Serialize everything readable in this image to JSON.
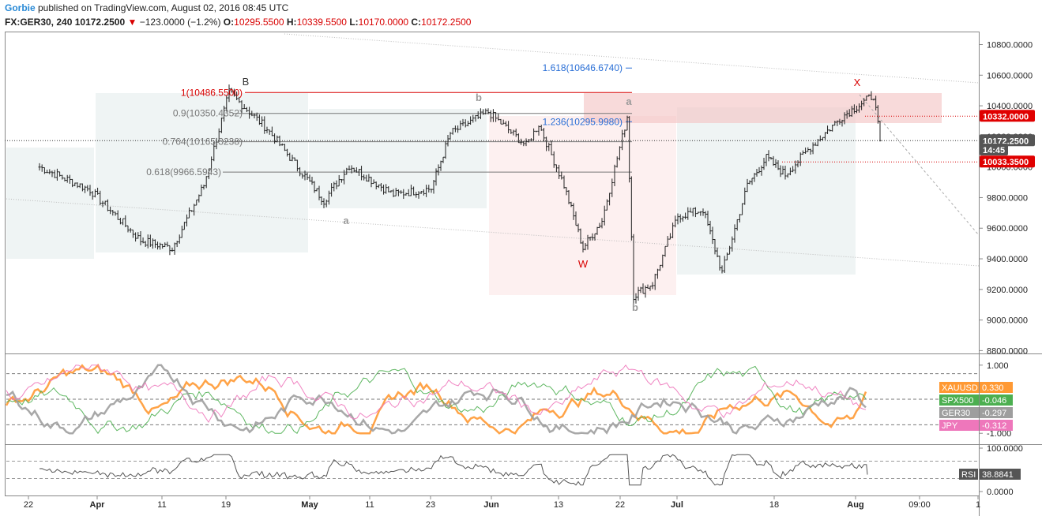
{
  "header": {
    "author": "Gorbie",
    "published_text": " published on TradingView.com, August 02, 2016 08:45 UTC",
    "symbol": "FX:GER30, 240",
    "last": "10172.2500",
    "change": "−123.0000 (−1.2%)",
    "o_label": "O:",
    "o_value": "10295.5500",
    "h_label": "H:",
    "h_value": "10339.5500",
    "l_label": "L:",
    "l_value": "10170.0000",
    "c_label": "C:",
    "c_value": "10172.2500"
  },
  "colors": {
    "up": "#222222",
    "red": "#d80000",
    "blue": "#2a6fd6",
    "xauusd": "#ff9933",
    "spx500": "#4caf50",
    "ger30": "#9e9e9e",
    "jpy": "#ee77bb",
    "rsi": "#555555"
  },
  "chart_data": [
    {
      "type": "candlestick",
      "name": "FX:GER30, 240",
      "ylim": [
        8800,
        10900
      ],
      "y_ticks": [
        "10800.0000",
        "10600.0000",
        "10400.0000",
        "10200.0000",
        "10000.0000",
        "9800.0000",
        "9600.0000",
        "9400.0000",
        "9200.0000",
        "9000.0000",
        "8800.0000"
      ],
      "x_ticks": [
        "22",
        "Apr",
        "11",
        "19",
        "May",
        "11",
        "23",
        "Jun",
        "13",
        "22",
        "Jul",
        "18",
        "Aug",
        "09:00",
        "1"
      ],
      "key_points": [
        {
          "date": "2016-03-22",
          "value": 10000
        },
        {
          "date": "2016-03-30",
          "value": 9850
        },
        {
          "date": "2016-04-07",
          "value": 9520
        },
        {
          "date": "2016-04-12",
          "value": 9470
        },
        {
          "date": "2016-04-17",
          "value": 9880
        },
        {
          "date": "2016-04-21",
          "value": 10486.55
        },
        {
          "date": "2016-04-27",
          "value": 10250
        },
        {
          "date": "2016-05-03",
          "value": 9940
        },
        {
          "date": "2016-05-06",
          "value": 9780
        },
        {
          "date": "2016-05-10",
          "value": 10010
        },
        {
          "date": "2016-05-17",
          "value": 9820
        },
        {
          "date": "2016-05-23",
          "value": 9860
        },
        {
          "date": "2016-05-26",
          "value": 10220
        },
        {
          "date": "2016-06-01",
          "value": 10360
        },
        {
          "date": "2016-06-07",
          "value": 10140
        },
        {
          "date": "2016-06-09",
          "value": 10280
        },
        {
          "date": "2016-06-13",
          "value": 9880
        },
        {
          "date": "2016-06-16",
          "value": 9470
        },
        {
          "date": "2016-06-19",
          "value": 9650
        },
        {
          "date": "2016-06-23",
          "value": 10330
        },
        {
          "date": "2016-06-24",
          "value": 9160
        },
        {
          "date": "2016-06-27",
          "value": 9240
        },
        {
          "date": "2016-07-01",
          "value": 9680
        },
        {
          "date": "2016-07-05",
          "value": 9720
        },
        {
          "date": "2016-07-08",
          "value": 9310
        },
        {
          "date": "2016-07-12",
          "value": 9880
        },
        {
          "date": "2016-07-15",
          "value": 10060
        },
        {
          "date": "2016-07-18",
          "value": 9950
        },
        {
          "date": "2016-07-22",
          "value": 10130
        },
        {
          "date": "2016-07-27",
          "value": 10330
        },
        {
          "date": "2016-08-01",
          "value": 10470
        },
        {
          "date": "2016-08-02",
          "value": 10172.25
        }
      ],
      "annotations": {
        "wave_labels": [
          {
            "text": "B",
            "color": "dark"
          },
          {
            "text": "a",
            "color": "gray"
          },
          {
            "text": "b",
            "color": "gray"
          },
          {
            "text": "W",
            "color": "red"
          },
          {
            "text": "a",
            "color": "gray"
          },
          {
            "text": "b",
            "color": "gray"
          },
          {
            "text": "X",
            "color": "red"
          }
        ],
        "fib_levels": [
          {
            "text": "1(10486.5500)",
            "value": 10486.55,
            "color": "red"
          },
          {
            "text": "0.9(10350.4352)",
            "value": 10350.4352,
            "color": "gray"
          },
          {
            "text": "0.764(10165.3238)",
            "value": 10165.3238,
            "color": "gray"
          },
          {
            "text": "0.618(9966.5943)",
            "value": 9966.5943,
            "color": "gray"
          },
          {
            "text": "1.618(10646.6740)",
            "value": 10646.674,
            "color": "blue"
          },
          {
            "text": "1.236(10295.9980)",
            "value": 10295.998,
            "color": "blue"
          }
        ],
        "price_tags": [
          {
            "text": "10332.0000",
            "value": 10332,
            "style": "red"
          },
          {
            "text": "10172.2500",
            "value": 10172.25,
            "style": "dark"
          },
          {
            "text": "14:45",
            "value": 10112,
            "style": "dark"
          },
          {
            "text": "10033.3500",
            "value": 10033.35,
            "style": "red"
          }
        ]
      }
    },
    {
      "type": "line",
      "name": "correlation",
      "ylim": [
        -1.25,
        1.25
      ],
      "y_ticks": [
        "1.000",
        "-1.000"
      ],
      "reference_lines": [
        0.75,
        0,
        -0.75
      ],
      "series": [
        {
          "name": "XAUUSD",
          "last": "0.330",
          "color": "#ff9933"
        },
        {
          "name": "SPX500",
          "last": "-0.046",
          "color": "#4caf50"
        },
        {
          "name": "GER30",
          "last": "-0.297",
          "color": "#9e9e9e"
        },
        {
          "name": "JPY",
          "last": "-0.312",
          "color": "#ee77bb"
        }
      ]
    },
    {
      "type": "line",
      "name": "RSI",
      "ylim": [
        0,
        100
      ],
      "y_ticks": [
        "100.0000",
        "0.0000"
      ],
      "reference_lines": [
        70,
        30
      ],
      "series": [
        {
          "name": "RSI",
          "last": "38.8841",
          "color": "#555555"
        }
      ]
    }
  ]
}
